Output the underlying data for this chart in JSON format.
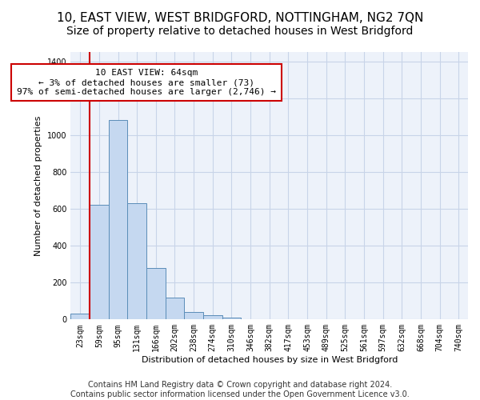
{
  "title": "10, EAST VIEW, WEST BRIDGFORD, NOTTINGHAM, NG2 7QN",
  "subtitle": "Size of property relative to detached houses in West Bridgford",
  "xlabel": "Distribution of detached houses by size in West Bridgford",
  "ylabel": "Number of detached properties",
  "categories": [
    "23sqm",
    "59sqm",
    "95sqm",
    "131sqm",
    "166sqm",
    "202sqm",
    "238sqm",
    "274sqm",
    "310sqm",
    "346sqm",
    "382sqm",
    "417sqm",
    "453sqm",
    "489sqm",
    "525sqm",
    "561sqm",
    "597sqm",
    "632sqm",
    "668sqm",
    "704sqm",
    "740sqm"
  ],
  "values": [
    30,
    620,
    1080,
    630,
    280,
    120,
    40,
    22,
    10,
    0,
    0,
    0,
    0,
    0,
    0,
    0,
    0,
    0,
    0,
    0,
    0
  ],
  "bar_color": "#c5d8f0",
  "bar_edge_color": "#5b8db8",
  "highlight_line_color": "#cc0000",
  "annotation_line": "10 EAST VIEW: 64sqm",
  "annotation_line2": "← 3% of detached houses are smaller (73)",
  "annotation_line3": "97% of semi-detached houses are larger (2,746) →",
  "annotation_box_color": "white",
  "annotation_box_edge_color": "#cc0000",
  "ylim": [
    0,
    1450
  ],
  "xlim_min": -0.5,
  "xlim_max": 20.5,
  "grid_color": "#c8d4e8",
  "bg_color": "#edf2fa",
  "footer_line1": "Contains HM Land Registry data © Crown copyright and database right 2024.",
  "footer_line2": "Contains public sector information licensed under the Open Government Licence v3.0.",
  "title_fontsize": 11,
  "subtitle_fontsize": 10,
  "label_fontsize": 8,
  "tick_fontsize": 7,
  "annotation_fontsize": 8,
  "footer_fontsize": 7
}
